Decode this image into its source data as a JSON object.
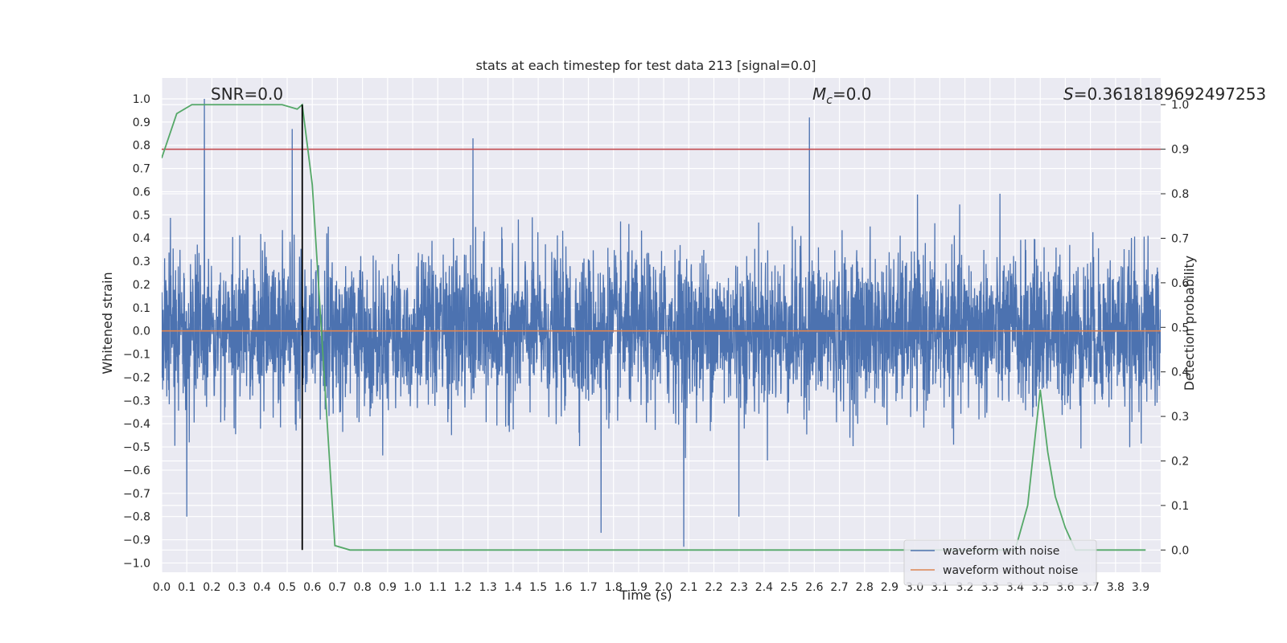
{
  "chart_data": {
    "type": "line",
    "title": "stats at each timestep for test data 213 [signal=0.0]",
    "xlabel": "Time (s)",
    "ylabel": "Whitened strain",
    "y2label": "Detection probability",
    "xlim": [
      0.0,
      3.98
    ],
    "ylim": [
      -1.04,
      1.09
    ],
    "y2lim": [
      -0.05,
      1.06
    ],
    "x_ticks": [
      "0.0",
      "0.1",
      "0.2",
      "0.3",
      "0.4",
      "0.5",
      "0.6",
      "0.7",
      "0.8",
      "0.9",
      "1.0",
      "1.1",
      "1.2",
      "1.3",
      "1.4",
      "1.5",
      "1.6",
      "1.7",
      "1.8",
      "1.9",
      "2.0",
      "2.1",
      "2.2",
      "2.3",
      "2.4",
      "2.5",
      "2.6",
      "2.7",
      "2.8",
      "2.9",
      "3.0",
      "3.1",
      "3.2",
      "3.3",
      "3.4",
      "3.5",
      "3.6",
      "3.7",
      "3.8",
      "3.9"
    ],
    "y_ticks": [
      "1.0",
      "0.9",
      "0.8",
      "0.7",
      "0.6",
      "0.5",
      "0.4",
      "0.3",
      "0.2",
      "0.1",
      "0.0",
      "−0.1",
      "−0.2",
      "−0.3",
      "−0.4",
      "−0.5",
      "−0.6",
      "−0.7",
      "−0.8",
      "−0.9",
      "−1.0"
    ],
    "y2_ticks": [
      "1.0",
      "0.9",
      "0.8",
      "0.7",
      "0.6",
      "0.5",
      "0.4",
      "0.3",
      "0.2",
      "0.1",
      "0.0"
    ],
    "grid": true,
    "legend_position": "lower-right",
    "annotations": {
      "snr_text": "SNR=0.0",
      "mc_symbol": "M",
      "mc_subscript": "c",
      "mc_value": "=0.0",
      "s_symbol": "S",
      "s_value": "=0.3618189692497253"
    },
    "series": [
      {
        "name": "waveform with noise",
        "color": "#4c72b0",
        "axis": "left",
        "amplitude_typical": 0.3,
        "spikes": [
          {
            "x": 0.17,
            "y": 1.0
          },
          {
            "x": 0.52,
            "y": 0.87
          },
          {
            "x": 1.24,
            "y": 0.83
          },
          {
            "x": 2.58,
            "y": 0.92
          },
          {
            "x": 0.1,
            "y": -0.8
          },
          {
            "x": 1.75,
            "y": -0.87
          },
          {
            "x": 2.08,
            "y": -0.93
          },
          {
            "x": 2.3,
            "y": -0.8
          }
        ]
      },
      {
        "name": "waveform without noise",
        "color": "#dd8452",
        "axis": "left",
        "x": [
          0.0,
          3.98
        ],
        "y": [
          0.0,
          0.0
        ]
      },
      {
        "name": "",
        "color": "#55a868",
        "axis": "right",
        "x": [
          0.0,
          0.06,
          0.12,
          0.18,
          0.24,
          0.3,
          0.36,
          0.42,
          0.48,
          0.54,
          0.56,
          0.6,
          0.63,
          0.66,
          0.69,
          0.75,
          3.4,
          3.45,
          3.5,
          3.53,
          3.56,
          3.6,
          3.64,
          3.92
        ],
        "y": [
          0.88,
          0.98,
          1.0,
          1.0,
          1.0,
          1.0,
          1.0,
          1.0,
          1.0,
          0.99,
          1.0,
          0.82,
          0.55,
          0.28,
          0.01,
          0.0,
          0.0,
          0.1,
          0.36,
          0.22,
          0.12,
          0.05,
          0.0,
          0.0
        ]
      }
    ],
    "threshold_line": {
      "axis": "right",
      "y": 0.9,
      "color": "#c44e52"
    },
    "marker_line": {
      "x": 0.56,
      "y_top": 1.0,
      "y_bottom": 0.0,
      "color": "#000000"
    }
  }
}
